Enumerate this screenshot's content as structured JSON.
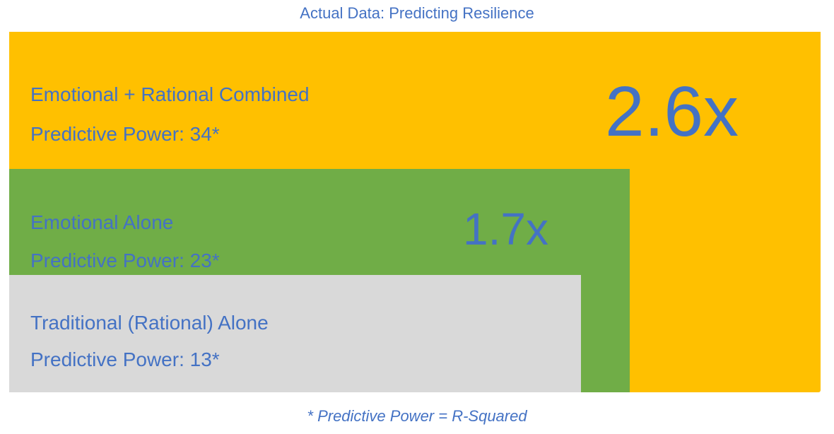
{
  "title": "Actual Data: Predicting Resilience",
  "blocks": [
    {
      "name": "Emotional + Rational Combined",
      "power_label": "Predictive Power: 34*",
      "predictive_power": 34,
      "multiplier": "2.6x",
      "color": "#FFC000"
    },
    {
      "name": "Emotional Alone",
      "power_label": "Predictive Power: 23*",
      "predictive_power": 23,
      "multiplier": "1.7x",
      "color": "#70AD47"
    },
    {
      "name": "Traditional (Rational) Alone",
      "power_label": "Predictive Power: 13*",
      "predictive_power": 13,
      "color": "#D9D9D9"
    }
  ],
  "footnote": "* Predictive Power = R-Squared",
  "text_color": "#4472C4"
}
